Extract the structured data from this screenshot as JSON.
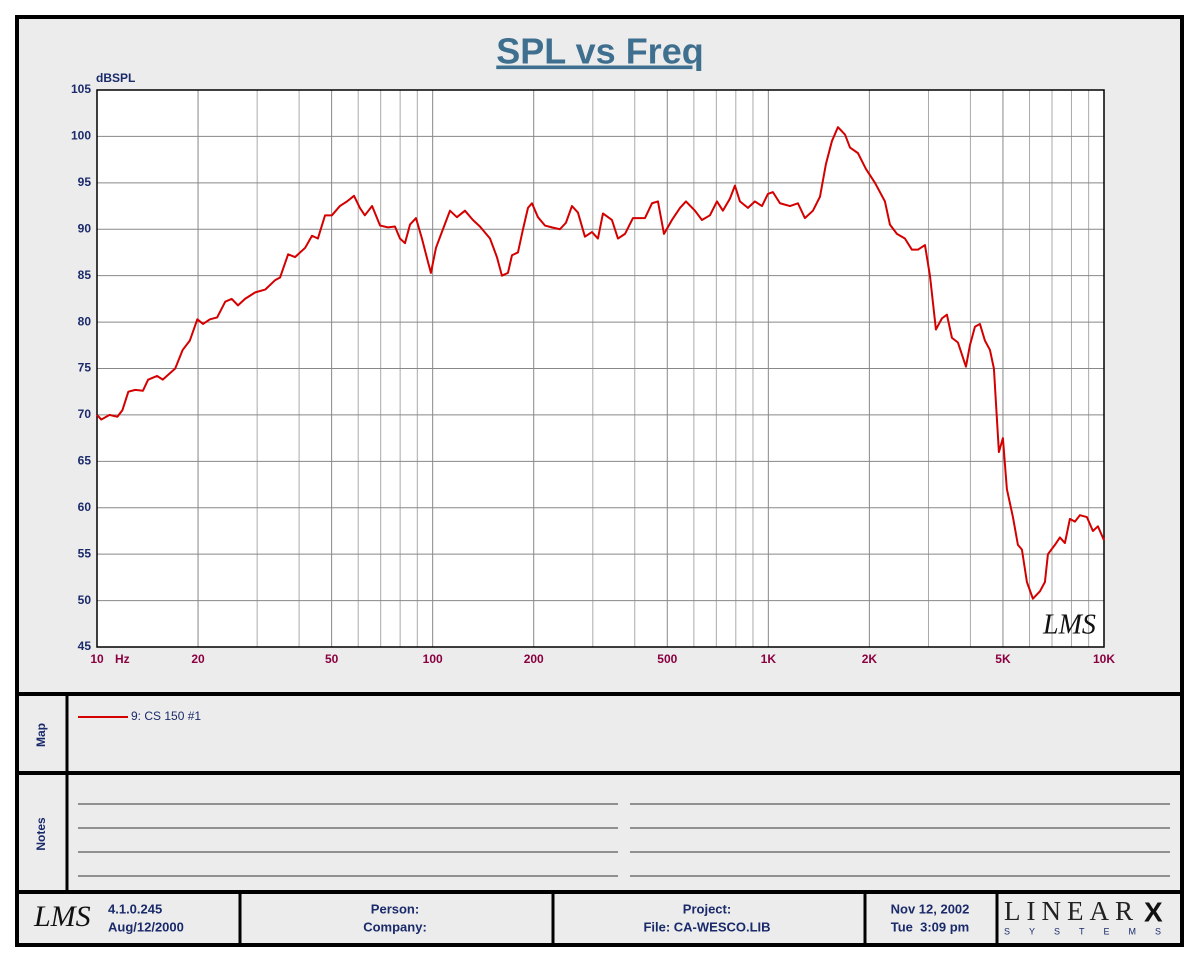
{
  "chart_data": {
    "type": "line",
    "title": "SPL vs Freq",
    "y_label": "dBSPL",
    "x_unit": "Hz",
    "x_scale": "log",
    "grid": true,
    "xlim": [
      10,
      10000
    ],
    "ylim": [
      45,
      105
    ],
    "xticks": [
      10,
      20,
      50,
      100,
      200,
      500,
      {
        "value": 1000,
        "label": "1K"
      },
      {
        "value": 2000,
        "label": "2K"
      },
      {
        "value": 5000,
        "label": "5K"
      },
      {
        "value": 10000,
        "label": "10K"
      }
    ],
    "x_minor_ticks": [
      30,
      40,
      60,
      70,
      80,
      90,
      300,
      400,
      600,
      700,
      800,
      900,
      3000,
      4000,
      6000,
      7000,
      8000,
      9000
    ],
    "yticks": [
      45,
      50,
      55,
      60,
      65,
      70,
      75,
      80,
      85,
      90,
      95,
      100,
      105
    ],
    "annotation": "LMS",
    "x": [
      10,
      10.3,
      10.9,
      11.5,
      11.9,
      12.4,
      13.0,
      13.7,
      14.2,
      15.1,
      15.7,
      17.1,
      18.0,
      18.9,
      19.9,
      20.7,
      21.7,
      22.8,
      24.1,
      25.2,
      26.3,
      27.6,
      29.6,
      31.7,
      33.9,
      35.1,
      37.1,
      38.9,
      41.7,
      43.7,
      45.5,
      47.8,
      50.1,
      52.9,
      55.6,
      58.3,
      60.7,
      62.8,
      66.0,
      69.7,
      73.6,
      77.2,
      79.9,
      82.7,
      85.6,
      89.2,
      92.9,
      96.8,
      98.8,
      102.3,
      107.3,
      112.6,
      118.1,
      124.8,
      131.8,
      138.3,
      148.2,
      155.4,
      160.8,
      167.6,
      172.3,
      179.5,
      185.8,
      192.3,
      197.6,
      205.9,
      216.0,
      226.7,
      239.4,
      249.5,
      260.0,
      270.9,
      284.2,
      298.2,
      310.7,
      321.6,
      342.0,
      356.5,
      374.1,
      395.1,
      429.0,
      450.2,
      469.0,
      488.8,
      516.3,
      545.5,
      568.3,
      604.5,
      634.2,
      669.9,
      703.0,
      732.4,
      768.4,
      795.2,
      823.0,
      869.4,
      912.3,
      957.2,
      997.2,
      1032,
      1083,
      1160,
      1225,
      1285,
      1358,
      1425,
      1484,
      1547,
      1612,
      1692,
      1751,
      1849,
      1953,
      2078,
      2225,
      2303,
      2416,
      2552,
      2677,
      2790,
      2928,
      3030,
      3157,
      3290,
      3404,
      3524,
      3672,
      3879,
      3986,
      4126,
      4269,
      4419,
      4573,
      4699,
      4863,
      4998,
      5137,
      5354,
      5540,
      5694,
      5893,
      6141,
      6444,
      6668,
      6807,
      7141,
      7390,
      7648,
      7914,
      8192,
      8477,
      8892,
      9267,
      9590,
      10000
    ],
    "series": [
      {
        "name": "9: CS 150 #1",
        "color": "#d40000",
        "values": [
          70,
          69.5,
          70,
          69.8,
          70.5,
          72.5,
          72.7,
          72.6,
          73.8,
          74.2,
          73.8,
          75,
          77,
          78,
          80.3,
          79.8,
          80.3,
          80.5,
          82.2,
          82.5,
          81.8,
          82.5,
          83.2,
          83.5,
          84.5,
          84.8,
          87.3,
          87.0,
          88,
          89.3,
          89,
          91.5,
          91.5,
          92.5,
          93,
          93.6,
          92.3,
          91.5,
          92.5,
          90.4,
          90.2,
          90.3,
          89,
          88.5,
          90.5,
          91.2,
          89,
          86.5,
          85.3,
          88,
          90,
          92,
          91.3,
          92,
          91,
          90.3,
          89,
          87,
          85,
          85.3,
          87.2,
          87.5,
          90,
          92.3,
          92.8,
          91.3,
          90.4,
          90.2,
          90,
          90.7,
          92.5,
          91.8,
          89.2,
          89.7,
          89,
          91.7,
          91,
          89,
          89.5,
          91.2,
          91.2,
          92.8,
          93,
          89.5,
          91,
          92.3,
          93,
          92,
          91,
          91.5,
          93,
          92,
          93.3,
          94.7,
          93,
          92.3,
          93,
          92.5,
          93.8,
          94,
          92.8,
          92.5,
          92.8,
          91.2,
          92,
          93.5,
          97,
          99.5,
          101,
          100.2,
          98.8,
          98.2,
          96.5,
          95,
          93,
          90.5,
          89.5,
          89,
          87.8,
          87.8,
          88.3,
          85,
          79.2,
          80.4,
          80.8,
          78.3,
          77.8,
          75.2,
          77.5,
          79.5,
          79.8,
          78,
          77,
          75,
          66,
          67.5,
          62,
          59,
          56,
          55.5,
          52,
          50.2,
          51,
          52,
          55,
          56,
          56.8,
          56.2,
          58.8,
          58.5,
          59.2,
          59,
          57.5,
          58,
          56.5
        ]
      }
    ]
  },
  "map": {
    "label": "Map"
  },
  "notes": {
    "label": "Notes"
  },
  "footer": {
    "logo": "LMS",
    "version": "4.1.0.245",
    "build_date": "Aug/12/2000",
    "person": "Person:",
    "company": "Company:",
    "project": "Project:",
    "file": "File: CA-WESCO.LIB",
    "date": "Nov 12, 2002",
    "time": "Tue  3:09 pm",
    "brand": "LINEAR",
    "brand_x": "X",
    "brand_sub": "SYSTEMS"
  }
}
